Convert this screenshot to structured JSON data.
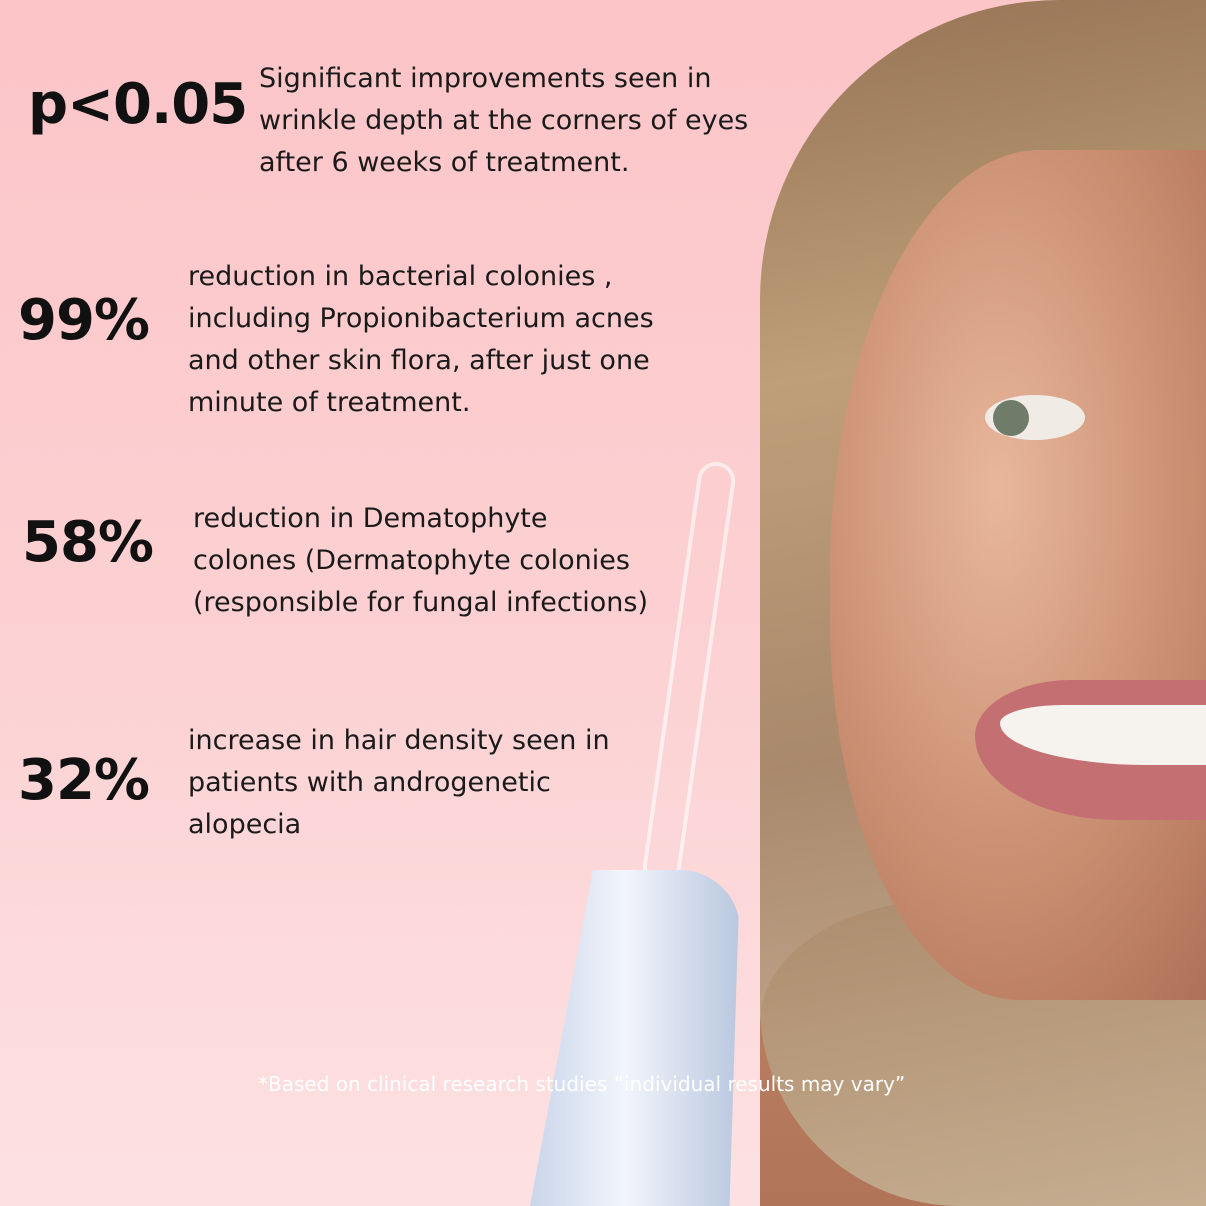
{
  "stats": [
    {
      "value": "p<0.05",
      "lines": [
        "Significant improvements seen in",
        "wrinkle depth at the corners of eyes",
        "after 6 weeks of treatment."
      ]
    },
    {
      "value": "99%",
      "lines": [
        "reduction in bacterial colonies ,",
        "including Propionibacterium acnes",
        "and other skin flora, after just one",
        "minute of treatment."
      ]
    },
    {
      "value": "58%",
      "lines": [
        "reduction in Dematophyte",
        "colones (Dermatophyte colonies",
        "(responsible for fungal infections)"
      ]
    },
    {
      "value": "32%",
      "lines": [
        "increase in hair density seen in",
        "patients with androgenetic",
        "alopecia"
      ]
    }
  ],
  "footnote": "*Based on clinical research studies “individual results may vary”",
  "colors": {
    "background_top": "#fcc5c8",
    "background_bottom": "#fde1e2",
    "text": "#111111"
  }
}
